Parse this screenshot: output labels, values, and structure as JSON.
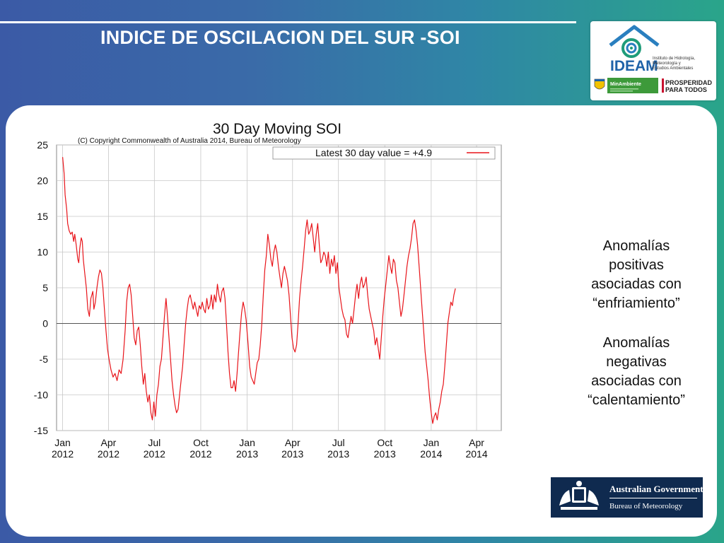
{
  "slide": {
    "title": "INDICE DE OSCILACION DEL SUR -SOI"
  },
  "logos": {
    "ideam_name": "IDEAM",
    "ideam_sub": [
      "Instituto de Hidrología,",
      "Meteorología y",
      "Estudios Ambientales"
    ],
    "minambiente": "MinAmbiente",
    "prosperidad_1": "PROSPERIDAD",
    "prosperidad_2": "PARA TODOS",
    "bom_line1": "Australian Government",
    "bom_line2": "Bureau of Meteorology"
  },
  "notes": {
    "positive": [
      "Anomalías",
      "positivas",
      "asociadas con",
      "“enfriamiento”"
    ],
    "negative": [
      "Anomalías",
      "negativas",
      "asociadas con",
      "“calentamiento”"
    ]
  },
  "colors": {
    "series": "#e8141a",
    "zero_line": "#555555",
    "grid": "#c8c8c8",
    "bom_bg": "#0f2a4f"
  },
  "chart_data": {
    "type": "line",
    "title": "30 Day Moving SOI",
    "subtitle": "(C) Copyright Commonwealth of Australia 2014, Bureau of Meteorology",
    "legend": {
      "label": "Latest 30 day value = +4.9",
      "position": "top-right"
    },
    "ylim": [
      -15,
      25
    ],
    "yticks": [
      25,
      20,
      15,
      10,
      5,
      0,
      -5,
      -10,
      -15
    ],
    "xlim": [
      "2011-12-20",
      "2014-05-20"
    ],
    "xticks": [
      {
        "date": "2012-01-01",
        "line1": "Jan",
        "line2": "2012"
      },
      {
        "date": "2012-04-01",
        "line1": "Apr",
        "line2": "2012"
      },
      {
        "date": "2012-07-01",
        "line1": "Jul",
        "line2": "2012"
      },
      {
        "date": "2012-10-01",
        "line1": "Oct",
        "line2": "2012"
      },
      {
        "date": "2013-01-01",
        "line1": "Jan",
        "line2": "2013"
      },
      {
        "date": "2013-04-01",
        "line1": "Apr",
        "line2": "2013"
      },
      {
        "date": "2013-07-01",
        "line1": "Jul",
        "line2": "2013"
      },
      {
        "date": "2013-10-01",
        "line1": "Oct",
        "line2": "2013"
      },
      {
        "date": "2014-01-01",
        "line1": "Jan",
        "line2": "2014"
      },
      {
        "date": "2014-04-01",
        "line1": "Apr",
        "line2": "2014"
      }
    ],
    "grid": true,
    "series": [
      {
        "name": "Latest 30 day value = +4.9",
        "points": [
          [
            "2012-01-01",
            23.3
          ],
          [
            "2012-01-04",
            21.0
          ],
          [
            "2012-01-06",
            18.0
          ],
          [
            "2012-01-09",
            16.0
          ],
          [
            "2012-01-11",
            14.0
          ],
          [
            "2012-01-14",
            13.0
          ],
          [
            "2012-01-17",
            12.5
          ],
          [
            "2012-01-20",
            12.8
          ],
          [
            "2012-01-23",
            11.5
          ],
          [
            "2012-01-25",
            12.5
          ],
          [
            "2012-01-28",
            11.0
          ],
          [
            "2012-01-31",
            9.0
          ],
          [
            "2012-02-02",
            8.5
          ],
          [
            "2012-02-04",
            10.5
          ],
          [
            "2012-02-07",
            12.0
          ],
          [
            "2012-02-09",
            11.5
          ],
          [
            "2012-02-11",
            9.0
          ],
          [
            "2012-02-14",
            7.0
          ],
          [
            "2012-02-17",
            5.0
          ],
          [
            "2012-02-20",
            2.0
          ],
          [
            "2012-02-23",
            1.0
          ],
          [
            "2012-02-26",
            3.5
          ],
          [
            "2012-03-01",
            4.5
          ],
          [
            "2012-03-03",
            2.0
          ],
          [
            "2012-03-06",
            3.0
          ],
          [
            "2012-03-09",
            5.0
          ],
          [
            "2012-03-12",
            6.5
          ],
          [
            "2012-03-15",
            7.5
          ],
          [
            "2012-03-18",
            7.0
          ],
          [
            "2012-03-21",
            5.0
          ],
          [
            "2012-03-24",
            2.0
          ],
          [
            "2012-03-27",
            -1.0
          ],
          [
            "2012-03-30",
            -3.5
          ],
          [
            "2012-04-02",
            -5.0
          ],
          [
            "2012-04-06",
            -6.5
          ],
          [
            "2012-04-10",
            -7.5
          ],
          [
            "2012-04-14",
            -7.0
          ],
          [
            "2012-04-18",
            -8.0
          ],
          [
            "2012-04-22",
            -6.5
          ],
          [
            "2012-04-26",
            -7.0
          ],
          [
            "2012-04-30",
            -5.0
          ],
          [
            "2012-05-04",
            -1.0
          ],
          [
            "2012-05-07",
            3.0
          ],
          [
            "2012-05-10",
            5.0
          ],
          [
            "2012-05-13",
            5.5
          ],
          [
            "2012-05-16",
            4.0
          ],
          [
            "2012-05-19",
            1.0
          ],
          [
            "2012-05-22",
            -2.0
          ],
          [
            "2012-05-25",
            -3.0
          ],
          [
            "2012-05-28",
            -1.0
          ],
          [
            "2012-05-31",
            -0.5
          ],
          [
            "2012-06-03",
            -3.0
          ],
          [
            "2012-06-06",
            -6.0
          ],
          [
            "2012-06-09",
            -8.5
          ],
          [
            "2012-06-12",
            -7.0
          ],
          [
            "2012-06-15",
            -9.5
          ],
          [
            "2012-06-18",
            -11.0
          ],
          [
            "2012-06-21",
            -10.0
          ],
          [
            "2012-06-24",
            -12.5
          ],
          [
            "2012-06-27",
            -13.5
          ],
          [
            "2012-06-30",
            -11.0
          ],
          [
            "2012-07-03",
            -13.0
          ],
          [
            "2012-07-06",
            -10.0
          ],
          [
            "2012-07-09",
            -8.5
          ],
          [
            "2012-07-12",
            -6.0
          ],
          [
            "2012-07-15",
            -5.0
          ],
          [
            "2012-07-18",
            -2.0
          ],
          [
            "2012-07-21",
            1.0
          ],
          [
            "2012-07-24",
            3.5
          ],
          [
            "2012-07-27",
            1.0
          ],
          [
            "2012-07-30",
            -2.0
          ],
          [
            "2012-08-02",
            -5.0
          ],
          [
            "2012-08-05",
            -8.0
          ],
          [
            "2012-08-08",
            -10.0
          ],
          [
            "2012-08-11",
            -11.5
          ],
          [
            "2012-08-14",
            -12.5
          ],
          [
            "2012-08-17",
            -12.0
          ],
          [
            "2012-08-20",
            -10.0
          ],
          [
            "2012-08-23",
            -8.0
          ],
          [
            "2012-08-26",
            -6.0
          ],
          [
            "2012-08-29",
            -3.0
          ],
          [
            "2012-09-01",
            0.0
          ],
          [
            "2012-09-04",
            2.0
          ],
          [
            "2012-09-07",
            3.5
          ],
          [
            "2012-09-10",
            4.0
          ],
          [
            "2012-09-13",
            3.0
          ],
          [
            "2012-09-16",
            2.0
          ],
          [
            "2012-09-19",
            3.0
          ],
          [
            "2012-09-22",
            2.0
          ],
          [
            "2012-09-25",
            1.0
          ],
          [
            "2012-09-28",
            2.5
          ],
          [
            "2012-10-01",
            2.0
          ],
          [
            "2012-10-04",
            3.0
          ],
          [
            "2012-10-07",
            2.0
          ],
          [
            "2012-10-10",
            1.5
          ],
          [
            "2012-10-13",
            3.5
          ],
          [
            "2012-10-16",
            2.0
          ],
          [
            "2012-10-19",
            2.5
          ],
          [
            "2012-10-22",
            4.0
          ],
          [
            "2012-10-25",
            2.0
          ],
          [
            "2012-10-28",
            4.0
          ],
          [
            "2012-10-31",
            3.0
          ],
          [
            "2012-11-03",
            5.5
          ],
          [
            "2012-11-06",
            4.0
          ],
          [
            "2012-11-09",
            3.0
          ],
          [
            "2012-11-12",
            4.5
          ],
          [
            "2012-11-15",
            5.0
          ],
          [
            "2012-11-18",
            3.5
          ],
          [
            "2012-11-21",
            0.0
          ],
          [
            "2012-11-24",
            -4.0
          ],
          [
            "2012-11-27",
            -7.0
          ],
          [
            "2012-11-30",
            -9.0
          ],
          [
            "2012-12-03",
            -9.0
          ],
          [
            "2012-12-06",
            -8.0
          ],
          [
            "2012-12-09",
            -9.5
          ],
          [
            "2012-12-12",
            -7.0
          ],
          [
            "2012-12-15",
            -4.0
          ],
          [
            "2012-12-18",
            -1.0
          ],
          [
            "2012-12-21",
            1.5
          ],
          [
            "2012-12-24",
            3.0
          ],
          [
            "2012-12-27",
            2.0
          ],
          [
            "2012-12-30",
            0.5
          ],
          [
            "2013-01-03",
            -3.0
          ],
          [
            "2013-01-06",
            -6.0
          ],
          [
            "2013-01-09",
            -7.5
          ],
          [
            "2013-01-12",
            -8.0
          ],
          [
            "2013-01-15",
            -8.5
          ],
          [
            "2013-01-18",
            -7.0
          ],
          [
            "2013-01-21",
            -5.5
          ],
          [
            "2013-01-24",
            -5.0
          ],
          [
            "2013-01-27",
            -3.0
          ],
          [
            "2013-01-30",
            0.0
          ],
          [
            "2013-02-02",
            4.0
          ],
          [
            "2013-02-05",
            7.5
          ],
          [
            "2013-02-08",
            9.5
          ],
          [
            "2013-02-11",
            12.5
          ],
          [
            "2013-02-14",
            11.0
          ],
          [
            "2013-02-17",
            9.0
          ],
          [
            "2013-02-20",
            8.0
          ],
          [
            "2013-02-23",
            10.0
          ],
          [
            "2013-02-26",
            11.0
          ],
          [
            "2013-03-01",
            10.0
          ],
          [
            "2013-03-04",
            8.0
          ],
          [
            "2013-03-07",
            6.5
          ],
          [
            "2013-03-10",
            5.0
          ],
          [
            "2013-03-13",
            7.0
          ],
          [
            "2013-03-16",
            8.0
          ],
          [
            "2013-03-19",
            7.0
          ],
          [
            "2013-03-22",
            6.0
          ],
          [
            "2013-03-25",
            4.0
          ],
          [
            "2013-03-28",
            1.0
          ],
          [
            "2013-03-31",
            -2.0
          ],
          [
            "2013-04-03",
            -3.5
          ],
          [
            "2013-04-06",
            -4.0
          ],
          [
            "2013-04-09",
            -3.0
          ],
          [
            "2013-04-12",
            0.0
          ],
          [
            "2013-04-15",
            3.5
          ],
          [
            "2013-04-18",
            6.0
          ],
          [
            "2013-04-21",
            8.0
          ],
          [
            "2013-04-24",
            10.5
          ],
          [
            "2013-04-27",
            13.0
          ],
          [
            "2013-04-30",
            14.5
          ],
          [
            "2013-05-03",
            12.5
          ],
          [
            "2013-05-06",
            13.0
          ],
          [
            "2013-05-09",
            14.0
          ],
          [
            "2013-05-12",
            12.0
          ],
          [
            "2013-05-15",
            10.0
          ],
          [
            "2013-05-18",
            12.5
          ],
          [
            "2013-05-21",
            14.0
          ],
          [
            "2013-05-24",
            11.0
          ],
          [
            "2013-05-27",
            8.5
          ],
          [
            "2013-05-30",
            9.0
          ],
          [
            "2013-06-02",
            10.0
          ],
          [
            "2013-06-05",
            9.5
          ],
          [
            "2013-06-08",
            8.0
          ],
          [
            "2013-06-11",
            10.0
          ],
          [
            "2013-06-14",
            7.0
          ],
          [
            "2013-06-17",
            9.0
          ],
          [
            "2013-06-20",
            8.0
          ],
          [
            "2013-06-23",
            9.5
          ],
          [
            "2013-06-26",
            7.0
          ],
          [
            "2013-06-29",
            8.5
          ],
          [
            "2013-07-02",
            5.0
          ],
          [
            "2013-07-05",
            3.5
          ],
          [
            "2013-07-08",
            2.0
          ],
          [
            "2013-07-11",
            1.0
          ],
          [
            "2013-07-14",
            0.5
          ],
          [
            "2013-07-17",
            -1.5
          ],
          [
            "2013-07-20",
            -2.0
          ],
          [
            "2013-07-23",
            -0.5
          ],
          [
            "2013-07-26",
            1.0
          ],
          [
            "2013-07-29",
            0.0
          ],
          [
            "2013-08-01",
            2.0
          ],
          [
            "2013-08-04",
            4.0
          ],
          [
            "2013-08-07",
            5.5
          ],
          [
            "2013-08-10",
            3.5
          ],
          [
            "2013-08-13",
            5.5
          ],
          [
            "2013-08-16",
            6.5
          ],
          [
            "2013-08-19",
            5.0
          ],
          [
            "2013-08-22",
            5.5
          ],
          [
            "2013-08-25",
            6.5
          ],
          [
            "2013-08-28",
            4.0
          ],
          [
            "2013-08-31",
            2.0
          ],
          [
            "2013-09-03",
            1.0
          ],
          [
            "2013-09-06",
            0.0
          ],
          [
            "2013-09-09",
            -1.0
          ],
          [
            "2013-09-12",
            -3.0
          ],
          [
            "2013-09-15",
            -2.0
          ],
          [
            "2013-09-18",
            -3.5
          ],
          [
            "2013-09-21",
            -5.0
          ],
          [
            "2013-09-24",
            -2.0
          ],
          [
            "2013-09-27",
            1.0
          ],
          [
            "2013-09-30",
            3.5
          ],
          [
            "2013-10-03",
            5.5
          ],
          [
            "2013-10-06",
            7.5
          ],
          [
            "2013-10-09",
            9.5
          ],
          [
            "2013-10-12",
            8.0
          ],
          [
            "2013-10-15",
            7.0
          ],
          [
            "2013-10-18",
            9.0
          ],
          [
            "2013-10-21",
            8.5
          ],
          [
            "2013-10-24",
            6.0
          ],
          [
            "2013-10-27",
            5.0
          ],
          [
            "2013-10-30",
            3.0
          ],
          [
            "2013-11-02",
            1.0
          ],
          [
            "2013-11-05",
            2.0
          ],
          [
            "2013-11-08",
            4.0
          ],
          [
            "2013-11-11",
            6.0
          ],
          [
            "2013-11-14",
            8.0
          ],
          [
            "2013-11-17",
            9.5
          ],
          [
            "2013-11-20",
            10.5
          ],
          [
            "2013-11-23",
            12.0
          ],
          [
            "2013-11-26",
            14.0
          ],
          [
            "2013-11-29",
            14.5
          ],
          [
            "2013-12-02",
            13.0
          ],
          [
            "2013-12-05",
            11.0
          ],
          [
            "2013-12-08",
            8.0
          ],
          [
            "2013-12-11",
            5.0
          ],
          [
            "2013-12-14",
            2.0
          ],
          [
            "2013-12-17",
            -1.0
          ],
          [
            "2013-12-20",
            -4.0
          ],
          [
            "2013-12-23",
            -6.0
          ],
          [
            "2013-12-26",
            -8.0
          ],
          [
            "2013-12-29",
            -10.5
          ],
          [
            "2014-01-01",
            -12.5
          ],
          [
            "2014-01-04",
            -14.0
          ],
          [
            "2014-01-07",
            -13.0
          ],
          [
            "2014-01-10",
            -12.5
          ],
          [
            "2014-01-13",
            -13.5
          ],
          [
            "2014-01-16",
            -12.0
          ],
          [
            "2014-01-19",
            -11.0
          ],
          [
            "2014-01-22",
            -9.5
          ],
          [
            "2014-01-25",
            -8.5
          ],
          [
            "2014-01-28",
            -6.0
          ],
          [
            "2014-01-31",
            -3.0
          ],
          [
            "2014-02-03",
            0.0
          ],
          [
            "2014-02-06",
            1.5
          ],
          [
            "2014-02-09",
            3.0
          ],
          [
            "2014-02-12",
            2.5
          ],
          [
            "2014-02-15",
            4.0
          ],
          [
            "2014-02-18",
            4.9
          ]
        ]
      }
    ]
  }
}
